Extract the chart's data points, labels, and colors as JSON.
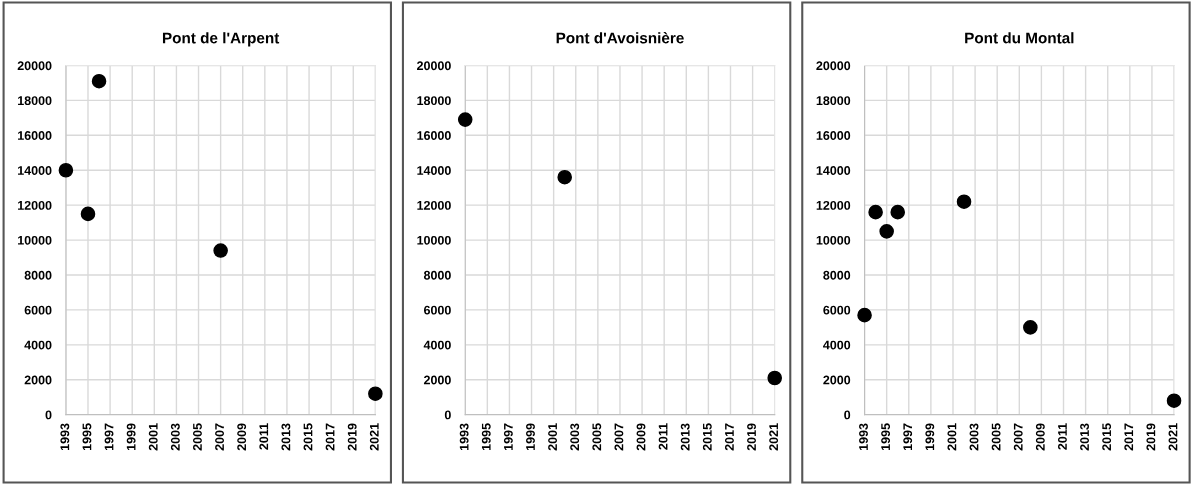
{
  "chart_data": [
    {
      "type": "scatter",
      "title": "Pont de l'Arpent",
      "x": [
        1993,
        1995,
        1996,
        2007,
        2021
      ],
      "values": [
        14000,
        11500,
        19100,
        9400,
        1200
      ],
      "color": "#000000",
      "marker": "circle",
      "xlim": [
        1993,
        2021
      ],
      "xticks": [
        1993,
        1995,
        1997,
        1999,
        2001,
        2003,
        2005,
        2007,
        2009,
        2011,
        2013,
        2015,
        2017,
        2019,
        2021
      ],
      "ylim": [
        0,
        20000
      ],
      "yticks": [
        0,
        2000,
        4000,
        6000,
        8000,
        10000,
        12000,
        14000,
        16000,
        18000,
        20000
      ],
      "grid": true
    },
    {
      "type": "scatter",
      "title": "Pont d'Avoisnière",
      "x": [
        1993,
        2002,
        2021
      ],
      "values": [
        16900,
        13600,
        2100
      ],
      "color": "#000000",
      "marker": "circle",
      "xlim": [
        1993,
        2021
      ],
      "xticks": [
        1993,
        1995,
        1997,
        1999,
        2001,
        2003,
        2005,
        2007,
        2009,
        2011,
        2013,
        2015,
        2017,
        2019,
        2021
      ],
      "ylim": [
        0,
        20000
      ],
      "yticks": [
        0,
        2000,
        4000,
        6000,
        8000,
        10000,
        12000,
        14000,
        16000,
        18000,
        20000
      ],
      "grid": true
    },
    {
      "type": "scatter",
      "title": "Pont du Montal",
      "x": [
        1993,
        1994,
        1995,
        1996,
        2002,
        2008,
        2021
      ],
      "values": [
        5700,
        11600,
        10500,
        11600,
        12200,
        5000,
        800
      ],
      "color": "#000000",
      "marker": "circle",
      "xlim": [
        1993,
        2021
      ],
      "xticks": [
        1993,
        1995,
        1997,
        1999,
        2001,
        2003,
        2005,
        2007,
        2009,
        2011,
        2013,
        2015,
        2017,
        2019,
        2021
      ],
      "ylim": [
        0,
        20000
      ],
      "yticks": [
        0,
        2000,
        4000,
        6000,
        8000,
        10000,
        12000,
        14000,
        16000,
        18000,
        20000
      ],
      "grid": true
    }
  ]
}
